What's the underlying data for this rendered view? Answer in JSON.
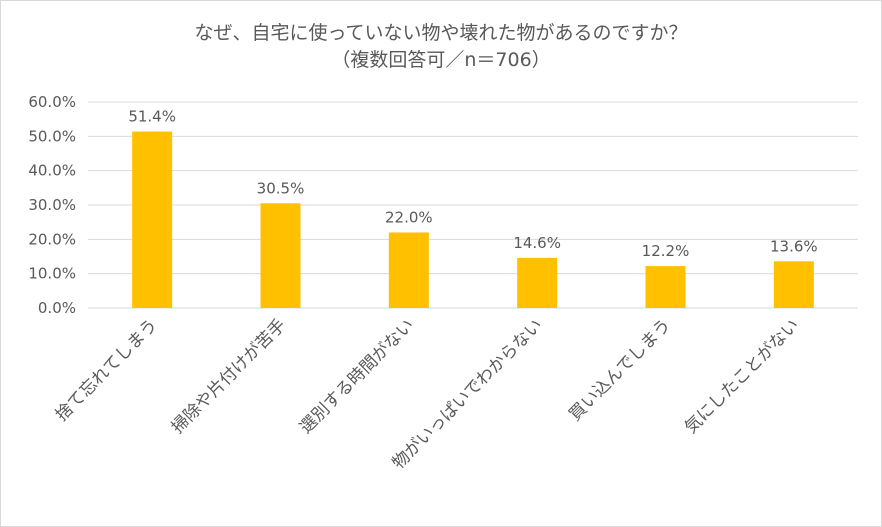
{
  "title_line1": "なぜ、自宅に使っていない物や壊れた物があるのですか？",
  "title_line2": "（複数回答可／n＝706）",
  "colors": {
    "bar": "#FFC000",
    "grid": "#d9d9d9",
    "text": "#595959"
  },
  "chart_data": {
    "type": "bar",
    "categories": [
      "捨て忘れてしまう",
      "掃除や片付けが苦手",
      "選別する時間がない",
      "物がいっぱいでわからない",
      "買い込んでしまう",
      "気にしたことがない"
    ],
    "values": [
      51.4,
      30.5,
      22.0,
      14.6,
      12.2,
      13.6
    ],
    "value_labels": [
      "51.4%",
      "30.5%",
      "22.0%",
      "14.6%",
      "12.2%",
      "13.6%"
    ],
    "y_ticks": [
      "0.0%",
      "10.0%",
      "20.0%",
      "30.0%",
      "40.0%",
      "50.0%",
      "60.0%"
    ],
    "ylim": [
      0,
      60
    ],
    "grid": true
  }
}
